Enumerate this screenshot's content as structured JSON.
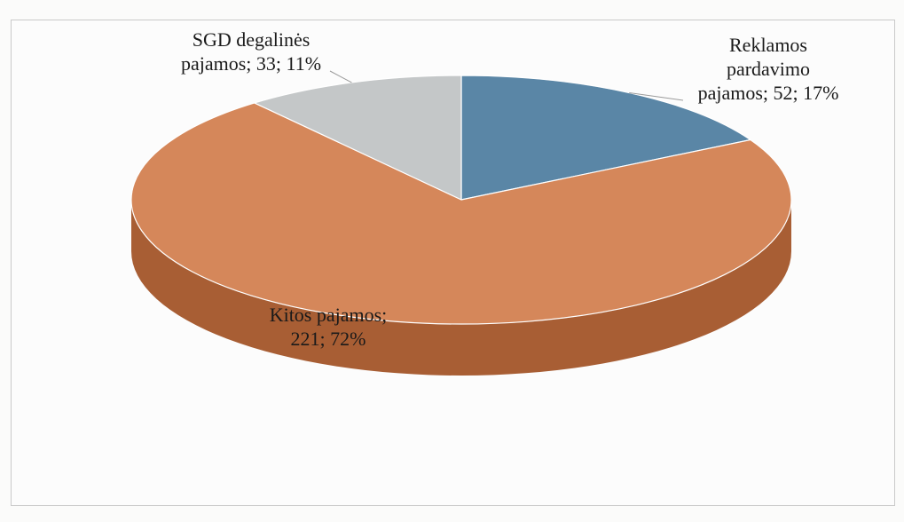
{
  "chart_data": {
    "type": "pie",
    "categories": [
      "Reklamos pardavimo pajamos",
      "Kitos pajamos",
      "SGD degalinės pajamos"
    ],
    "values": [
      52,
      221,
      33
    ],
    "percents": [
      17,
      72,
      11
    ],
    "data_labels": [
      [
        "Reklamos",
        "pardavimo",
        "pajamos; 52; 17%"
      ],
      [
        "Kitos pajamos;",
        "221; 72%"
      ],
      [
        "SGD degalinės",
        "pajamos; 33; 11%"
      ]
    ],
    "colors": [
      "#5a86a6",
      "#d5875a",
      "#c4c7c8"
    ],
    "side_colors": [
      "#3f6a88",
      "#a85e34",
      "#9a9c9d"
    ],
    "three_d": true,
    "start": "top",
    "direction": "clockwise"
  }
}
